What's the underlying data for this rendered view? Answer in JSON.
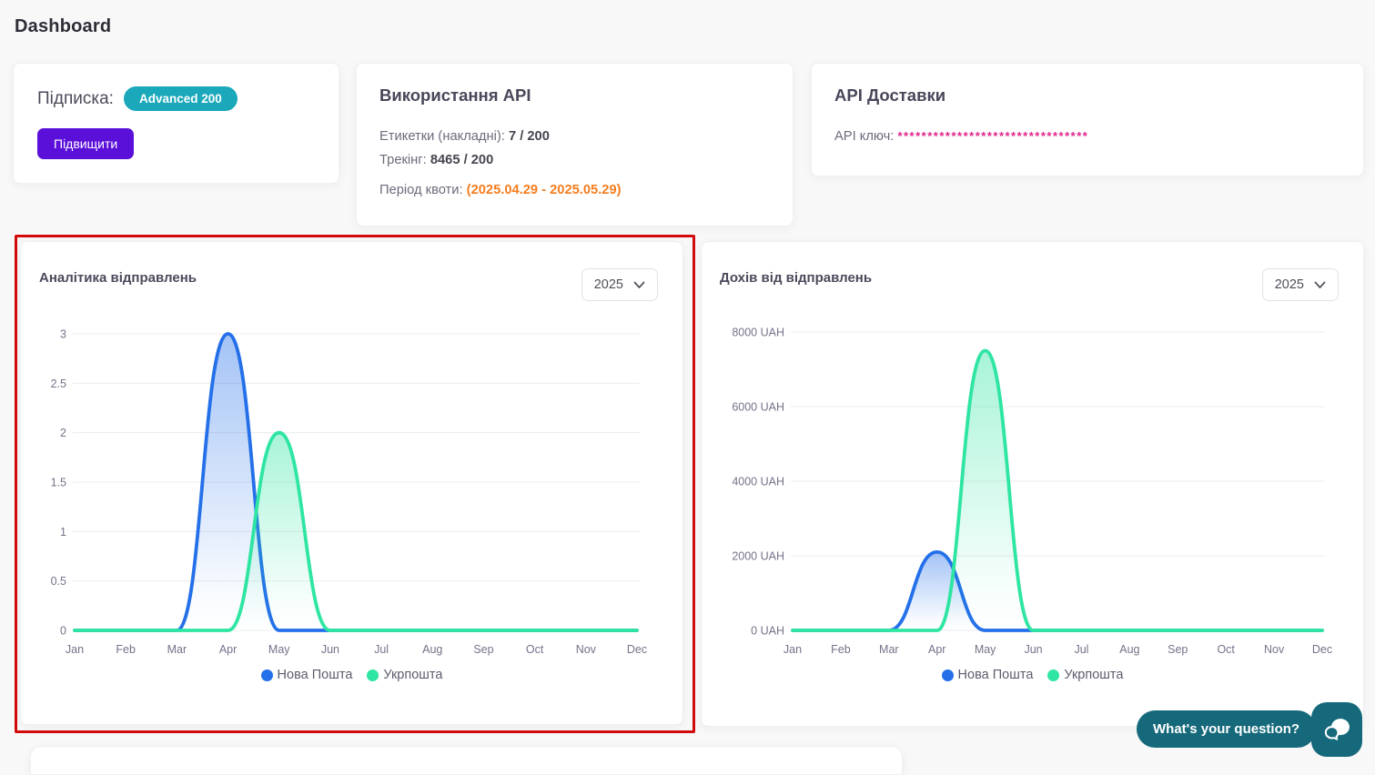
{
  "page": {
    "title": "Dashboard"
  },
  "cards": {
    "subscription": {
      "label": "Підписка:",
      "badge": "Advanced 200",
      "upgrade_button": "Підвищити"
    },
    "api_usage": {
      "title": "Використання API",
      "labels_line": {
        "label": "Етикетки (накладні):",
        "value": "7 / 200"
      },
      "tracking_line": {
        "label": "Трекінг:",
        "value": "8465 / 200"
      },
      "quota_line": {
        "label": "Період квоти:",
        "value": "(2025.04.29 - 2025.05.29)"
      }
    },
    "api_delivery": {
      "title": "API Доставки",
      "key_label": "API ключ:",
      "key_value": "********************************"
    }
  },
  "chart_data": [
    {
      "type": "area",
      "title": "Аналітика відправлень",
      "year": "2025",
      "categories": [
        "Jan",
        "Feb",
        "Mar",
        "Apr",
        "May",
        "Jun",
        "Jul",
        "Aug",
        "Sep",
        "Oct",
        "Nov",
        "Dec"
      ],
      "series": [
        {
          "name": "Нова Пошта",
          "color": "#2470e9",
          "values": [
            0,
            0,
            0,
            3,
            0,
            0,
            0,
            0,
            0,
            0,
            0,
            0
          ]
        },
        {
          "name": "Укрпошта",
          "color": "#2ee5a2",
          "values": [
            0,
            0,
            0,
            0,
            2,
            0,
            0,
            0,
            0,
            0,
            0,
            0
          ]
        }
      ],
      "ylim": [
        0,
        3
      ],
      "yticks": [
        3,
        2.5,
        2,
        1.5,
        1,
        0.5,
        0
      ],
      "ytick_labels": [
        "3",
        "2.5",
        "2",
        "1.5",
        "1",
        "0.5",
        "0"
      ],
      "xlabel": "",
      "ylabel": "",
      "grid": true,
      "smooth": true,
      "legend_position": "bottom"
    },
    {
      "type": "area",
      "title": "Дохів від відправлень",
      "year": "2025",
      "categories": [
        "Jan",
        "Feb",
        "Mar",
        "Apr",
        "May",
        "Jun",
        "Jul",
        "Aug",
        "Sep",
        "Oct",
        "Nov",
        "Dec"
      ],
      "series": [
        {
          "name": "Нова Пошта",
          "color": "#2470e9",
          "values": [
            0,
            0,
            0,
            2100,
            0,
            0,
            0,
            0,
            0,
            0,
            0,
            0
          ]
        },
        {
          "name": "Укрпошта",
          "color": "#2ee5a2",
          "values": [
            0,
            0,
            0,
            0,
            7500,
            0,
            0,
            0,
            0,
            0,
            0,
            0
          ]
        }
      ],
      "ylim": [
        0,
        8000
      ],
      "yticks": [
        8000,
        6000,
        4000,
        2000,
        0
      ],
      "ytick_labels": [
        "8000 UAH",
        "6000 UAH",
        "4000 UAH",
        "2000 UAH",
        "0 UAH"
      ],
      "xlabel": "",
      "ylabel": "",
      "grid": true,
      "smooth": true,
      "legend_position": "bottom"
    }
  ],
  "chat_widget": {
    "tooltip": "What's your question?"
  },
  "colors": {
    "badge_teal": "#1aa8ba",
    "button_purple": "#5b10d9",
    "quota_orange": "#f57d1f",
    "key_pink": "#e0218a",
    "series_blue": "#2470e9",
    "series_green": "#2ee5a2",
    "annotation_red": "#d20a0a",
    "chat_teal": "#15697b",
    "grid_line": "#ececf0",
    "axis_label": "#73738a"
  }
}
